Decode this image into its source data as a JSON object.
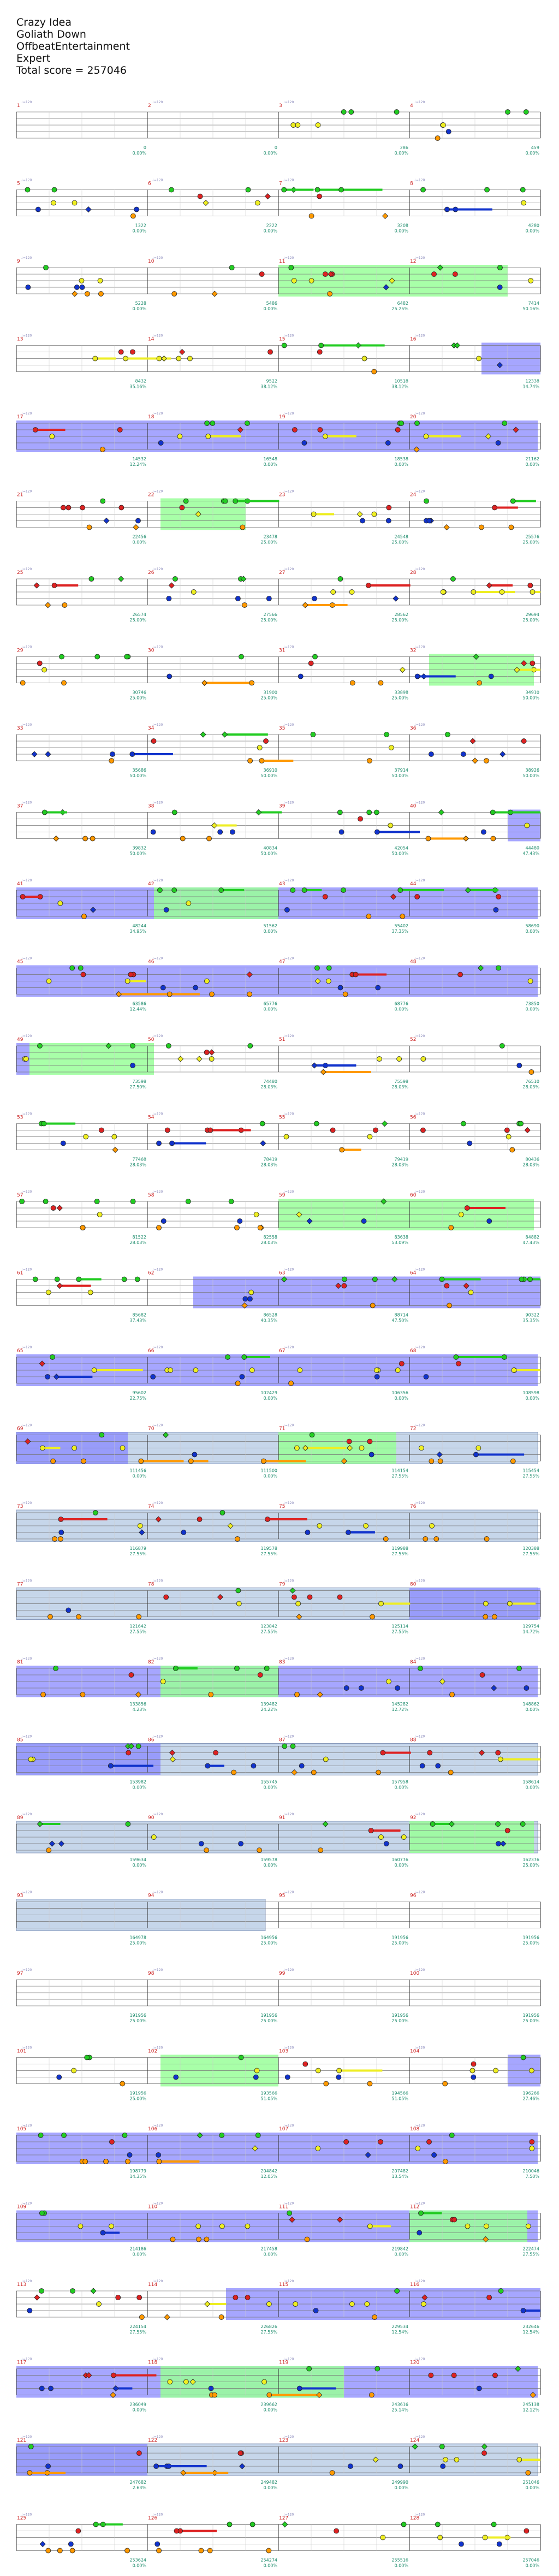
{
  "song": {
    "title": "Crazy Idea",
    "artist": "Goliath Down",
    "charter": "OffbeatEntertainment",
    "difficulty": "Expert",
    "total_score_label": "Total score = 257046"
  },
  "colors": {
    "green": "#22cc22",
    "red": "#dd2222",
    "yellow": "#eeee22",
    "blue": "#1133cc",
    "orange": "#ff9900",
    "sp_phrase": "#99ff99",
    "sp_active": "#8888ff",
    "solo": "#c6d6ea",
    "score_text": "#1a8a6a",
    "bpm_text": "#8888bb",
    "measure_text": "#cc2222"
  },
  "chart_data": {
    "type": "note-chart",
    "measures_per_row": 4,
    "rows": [
      {
        "measures": [
          1,
          2,
          3,
          4
        ],
        "scores": [
          "0",
          "0",
          "286",
          "459"
        ],
        "pcts": [
          "0.00%",
          "0.00%",
          "0.00%",
          "0.00%"
        ],
        "active": [],
        "phrase": [],
        "solo": []
      },
      {
        "measures": [
          5,
          6,
          7,
          8
        ],
        "scores": [
          "1322",
          "2222",
          "3208",
          "4280"
        ],
        "pcts": [
          "0.00%",
          "0.00%",
          "0.00%",
          "0.00%"
        ],
        "active": [],
        "phrase": [],
        "solo": []
      },
      {
        "measures": [
          9,
          10,
          11,
          12
        ],
        "scores": [
          "5228",
          "5486",
          "6482",
          "7414"
        ],
        "pcts": [
          "0.00%",
          "0.00%",
          "25.25%",
          "50.16%"
        ],
        "active": [],
        "phrase": [
          [
            2.0,
            3.75
          ]
        ],
        "solo": []
      },
      {
        "measures": [
          13,
          14,
          15,
          16
        ],
        "scores": [
          "8432",
          "9522",
          "10518",
          "12338"
        ],
        "pcts": [
          "35.16%",
          "38.12%",
          "38.12%",
          "14.74%"
        ],
        "active": [
          [
            3.55,
            4.0
          ]
        ],
        "phrase": [],
        "solo": []
      },
      {
        "measures": [
          17,
          18,
          19,
          20
        ],
        "scores": [
          "14532",
          "16548",
          "18538",
          "21162"
        ],
        "pcts": [
          "12.24%",
          "0.00%",
          "0.00%",
          "0.00%"
        ],
        "active": [
          [
            0,
            3.98
          ]
        ],
        "phrase": [],
        "solo": []
      },
      {
        "measures": [
          21,
          22,
          23,
          24
        ],
        "scores": [
          "22456",
          "23478",
          "24548",
          "25576"
        ],
        "pcts": [
          "0.00%",
          "25.00%",
          "25.00%",
          "25.00%"
        ],
        "active": [],
        "phrase": [
          [
            1.1,
            1.75
          ]
        ],
        "solo": []
      },
      {
        "measures": [
          25,
          26,
          27,
          28
        ],
        "scores": [
          "26574",
          "27566",
          "28562",
          "29694"
        ],
        "pcts": [
          "25.00%",
          "25.00%",
          "25.00%",
          "25.00%"
        ],
        "active": [],
        "phrase": [],
        "solo": []
      },
      {
        "measures": [
          29,
          30,
          31,
          32
        ],
        "scores": [
          "30746",
          "31900",
          "33898",
          "34910"
        ],
        "pcts": [
          "25.00%",
          "25.00%",
          "25.00%",
          "50.00%"
        ],
        "active": [],
        "phrase": [
          [
            3.15,
            3.95
          ]
        ],
        "solo": []
      },
      {
        "measures": [
          33,
          34,
          35,
          36
        ],
        "scores": [
          "35686",
          "36910",
          "37914",
          "38926"
        ],
        "pcts": [
          "50.00%",
          "50.00%",
          "50.00%",
          "50.00%"
        ],
        "active": [],
        "phrase": [],
        "solo": []
      },
      {
        "measures": [
          37,
          38,
          39,
          40
        ],
        "scores": [
          "39832",
          "40834",
          "42054",
          "44480"
        ],
        "pcts": [
          "50.00%",
          "50.00%",
          "50.00%",
          "47.43%"
        ],
        "active": [
          [
            3.75,
            4.0
          ]
        ],
        "phrase": [],
        "solo": []
      },
      {
        "measures": [
          41,
          42,
          43,
          44
        ],
        "scores": [
          "48244",
          "51562",
          "55402",
          "58690"
        ],
        "pcts": [
          "34.95%",
          "0.00%",
          "37.35%",
          "0.00%"
        ],
        "active": [
          [
            0,
            3.98
          ]
        ],
        "phrase": [
          [
            1.05,
            2.0
          ]
        ],
        "solo": []
      },
      {
        "measures": [
          45,
          46,
          47,
          48
        ],
        "scores": [
          "63586",
          "65776",
          "68776",
          "73850"
        ],
        "pcts": [
          "12.44%",
          "0.00%",
          "0.00%",
          "0.00%"
        ],
        "active": [
          [
            0,
            3.98
          ]
        ],
        "phrase": [],
        "solo": []
      },
      {
        "measures": [
          49,
          50,
          51,
          52
        ],
        "scores": [
          "73598",
          "74480",
          "75598",
          "76510"
        ],
        "pcts": [
          "27.50%",
          "28.03%",
          "28.03%",
          "28.03%"
        ],
        "active": [
          [
            0,
            0.1
          ]
        ],
        "phrase": [
          [
            0.1,
            1.05
          ]
        ],
        "solo": []
      },
      {
        "measures": [
          53,
          54,
          55,
          56
        ],
        "scores": [
          "77468",
          "78419",
          "79419",
          "80436"
        ],
        "pcts": [
          "28.03%",
          "28.03%",
          "28.03%",
          "28.03%"
        ],
        "active": [],
        "phrase": [],
        "solo": []
      },
      {
        "measures": [
          57,
          58,
          59,
          60
        ],
        "scores": [
          "81522",
          "82558",
          "83638",
          "84882"
        ],
        "pcts": [
          "28.03%",
          "28.03%",
          "53.09%",
          "47.43%"
        ],
        "active": [],
        "phrase": [
          [
            2.0,
            3.95
          ]
        ],
        "solo": []
      },
      {
        "measures": [
          61,
          62,
          63,
          64
        ],
        "scores": [
          "85682",
          "86528",
          "88714",
          "90322"
        ],
        "pcts": [
          "37.43%",
          "40.35%",
          "47.50%",
          "35.35%"
        ],
        "active": [
          [
            1.35,
            4.0
          ]
        ],
        "phrase": [],
        "solo": []
      },
      {
        "measures": [
          65,
          66,
          67,
          68
        ],
        "scores": [
          "95602",
          "102429",
          "106356",
          "108598"
        ],
        "pcts": [
          "22.75%",
          "0.00%",
          "0.00%",
          "0.00%"
        ],
        "active": [
          [
            0,
            3.98
          ]
        ],
        "phrase": [],
        "solo": []
      },
      {
        "measures": [
          69,
          70,
          71,
          72
        ],
        "scores": [
          "111456",
          "111500",
          "114154",
          "115454"
        ],
        "pcts": [
          "0.00%",
          "0.00%",
          "27.55%",
          "27.55%"
        ],
        "active": [
          [
            0,
            0.85
          ]
        ],
        "phrase": [
          [
            2.0,
            2.9
          ]
        ],
        "solo": [
          [
            0,
            3.98
          ]
        ]
      },
      {
        "measures": [
          73,
          74,
          75,
          76
        ],
        "scores": [
          "116879",
          "119578",
          "119988",
          "120388"
        ],
        "pcts": [
          "27.55%",
          "27.55%",
          "27.55%",
          "27.55%"
        ],
        "active": [],
        "phrase": [],
        "solo": [
          [
            0,
            3.98
          ]
        ]
      },
      {
        "measures": [
          77,
          78,
          79,
          80
        ],
        "scores": [
          "121642",
          "123842",
          "125114",
          "129754"
        ],
        "pcts": [
          "27.55%",
          "27.55%",
          "27.55%",
          "14.72%"
        ],
        "active": [
          [
            3.0,
            4.0
          ]
        ],
        "phrase": [],
        "solo": [
          [
            0,
            3.98
          ]
        ]
      },
      {
        "measures": [
          81,
          82,
          83,
          84
        ],
        "scores": [
          "133856",
          "139482",
          "145282",
          "148862"
        ],
        "pcts": [
          "4.23%",
          "24.22%",
          "12.72%",
          "0.00%"
        ],
        "active": [
          [
            0,
            3.98
          ]
        ],
        "phrase": [
          [
            1.1,
            2.0
          ]
        ],
        "solo": []
      },
      {
        "measures": [
          85,
          86,
          87,
          88
        ],
        "scores": [
          "153982",
          "155745",
          "157958",
          "158614"
        ],
        "pcts": [
          "0.00%",
          "0.00%",
          "0.00%",
          "0.00%"
        ],
        "active": [
          [
            0,
            1.1
          ]
        ],
        "phrase": [],
        "solo": [
          [
            0,
            3.98
          ]
        ]
      },
      {
        "measures": [
          89,
          90,
          91,
          92
        ],
        "scores": [
          "159634",
          "159578",
          "160776",
          "162376"
        ],
        "pcts": [
          "0.00%",
          "0.00%",
          "0.00%",
          "25.00%"
        ],
        "active": [],
        "phrase": [
          [
            3.0,
            3.95
          ]
        ],
        "solo": [
          [
            0,
            3.98
          ]
        ]
      },
      {
        "measures": [
          93,
          94,
          95,
          96
        ],
        "scores": [
          "164978",
          "164956",
          "191956",
          "191956"
        ],
        "pcts": [
          "25.00%",
          "25.00%",
          "25.00%",
          "25.00%"
        ],
        "active": [],
        "phrase": [],
        "solo": [
          [
            0,
            1.9
          ]
        ]
      },
      {
        "measures": [
          97,
          98,
          99,
          100
        ],
        "scores": [
          "191956",
          "191956",
          "191956",
          "191956"
        ],
        "pcts": [
          "25.00%",
          "25.00%",
          "25.00%",
          "25.00%"
        ],
        "active": [],
        "phrase": [],
        "solo": []
      },
      {
        "measures": [
          101,
          102,
          103,
          104
        ],
        "scores": [
          "191956",
          "193566",
          "194566",
          "196266"
        ],
        "pcts": [
          "25.00%",
          "51.05%",
          "51.05%",
          "27.46%"
        ],
        "active": [
          [
            3.75,
            4.0
          ]
        ],
        "phrase": [
          [
            1.1,
            2.0
          ]
        ],
        "solo": []
      },
      {
        "measures": [
          105,
          106,
          107,
          108
        ],
        "scores": [
          "198779",
          "204842",
          "207482",
          "210046"
        ],
        "pcts": [
          "14.35%",
          "12.05%",
          "13.54%",
          "7.50%"
        ],
        "active": [
          [
            0,
            3.98
          ]
        ],
        "phrase": [],
        "solo": []
      },
      {
        "measures": [
          109,
          110,
          111,
          112
        ],
        "scores": [
          "214186",
          "217458",
          "219842",
          "222474"
        ],
        "pcts": [
          "0.00%",
          "0.00%",
          "0.00%",
          "27.55%"
        ],
        "active": [
          [
            0,
            3.98
          ]
        ],
        "phrase": [
          [
            3.0,
            3.9
          ]
        ],
        "solo": []
      },
      {
        "measures": [
          113,
          114,
          115,
          116
        ],
        "scores": [
          "224154",
          "226826",
          "229534",
          "232646"
        ],
        "pcts": [
          "27.55%",
          "27.55%",
          "12.54%",
          "12.54%"
        ],
        "active": [
          [
            1.6,
            4.0
          ]
        ],
        "phrase": [],
        "solo": []
      },
      {
        "measures": [
          117,
          118,
          119,
          120
        ],
        "scores": [
          "236049",
          "239662",
          "243616",
          "245138"
        ],
        "pcts": [
          "0.00%",
          "0.00%",
          "25.14%",
          "12.12%"
        ],
        "active": [
          [
            0,
            3.98
          ]
        ],
        "phrase": [
          [
            1.1,
            2.5
          ]
        ],
        "solo": []
      },
      {
        "measures": [
          121,
          122,
          123,
          124
        ],
        "scores": [
          "247682",
          "249482",
          "249990",
          "251046"
        ],
        "pcts": [
          "2.63%",
          "0.00%",
          "0.00%",
          "0.00%"
        ],
        "active": [
          [
            0,
            1.0
          ]
        ],
        "phrase": [],
        "solo": [
          [
            0,
            3.98
          ]
        ]
      },
      {
        "measures": [
          125,
          126,
          127,
          128
        ],
        "scores": [
          "253624",
          "254274",
          "255516",
          "257046"
        ],
        "pcts": [
          "0.00%",
          "0.00%",
          "0.00%",
          "0.00%"
        ],
        "active": [],
        "phrase": [],
        "solo": []
      }
    ]
  }
}
